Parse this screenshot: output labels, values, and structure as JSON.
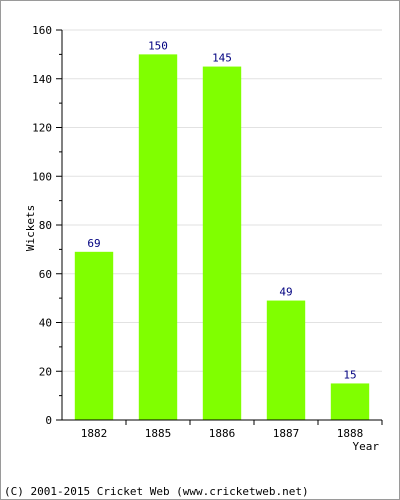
{
  "chart_data": {
    "type": "bar",
    "categories": [
      "1882",
      "1885",
      "1886",
      "1887",
      "1888"
    ],
    "values": [
      69,
      150,
      145,
      49,
      15
    ],
    "xlabel": "Year",
    "ylabel": "Wickets",
    "ylim": [
      0,
      160
    ],
    "yticks": [
      0,
      20,
      40,
      60,
      80,
      100,
      120,
      140,
      160
    ],
    "grid": true,
    "bar_color": "#80ff00",
    "label_color": "#000080"
  },
  "footer": {
    "text": "(C) 2001-2015 Cricket Web (www.cricketweb.net)"
  }
}
